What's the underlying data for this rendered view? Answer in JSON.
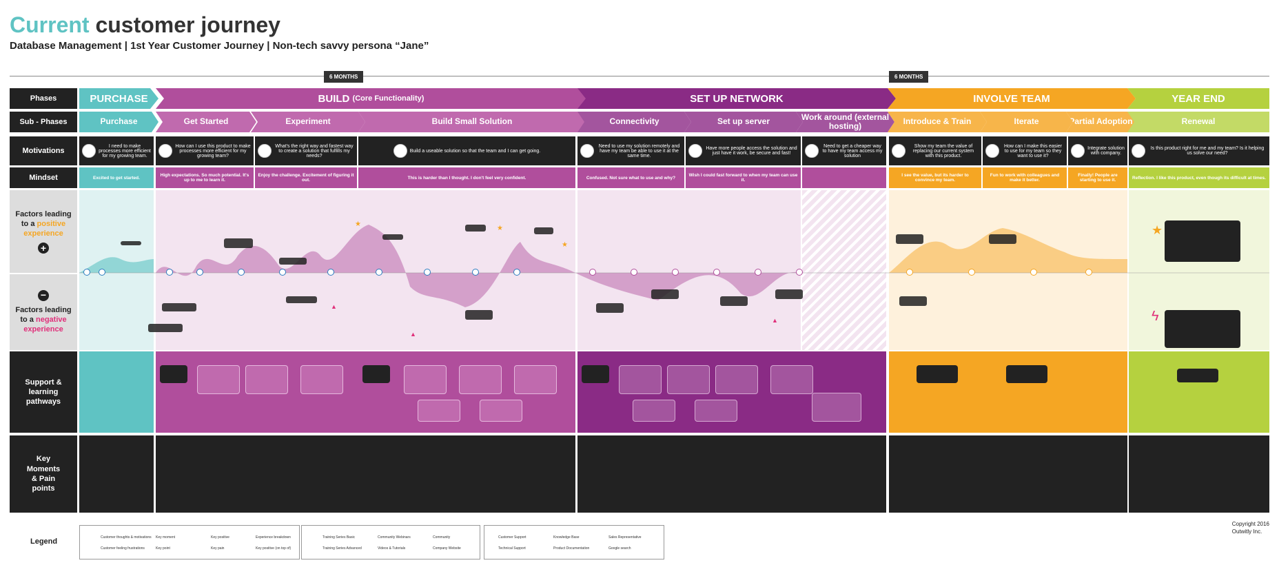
{
  "title": {
    "accent": "Current",
    "rest": " customer journey"
  },
  "subtitle": "Database Management  | 1st Year Customer Journey  | Non-tech savvy persona “Jane”",
  "timeline": {
    "mark1": "6 MONTHS",
    "mark2": "6 MONTHS"
  },
  "rows": {
    "phases": "Phases",
    "subphases": "Sub - Phases",
    "motivations": "Motivations",
    "mindset": "Mindset",
    "positive_1": "Factors leading",
    "positive_2": "to a",
    "positive_3": "positive",
    "positive_4": "experience",
    "negative_1": "Factors leading",
    "negative_2": "to a",
    "negative_3": "negative",
    "negative_4": "experience",
    "support": "Support & learning pathways",
    "moments": "Key Moments & Pain points"
  },
  "phases": [
    {
      "label": "PURCHASE",
      "color": "#5fc3c3"
    },
    {
      "label": "BUILD",
      "sub": "(Core Functionality)",
      "color": "#b04e9c"
    },
    {
      "label": "SET UP NETWORK",
      "color": "#8a2b85"
    },
    {
      "label": "INVOLVE TEAM",
      "color": "#f5a623"
    },
    {
      "label": "YEAR END",
      "color": "#b5d13f"
    }
  ],
  "subphases": [
    "Purchase",
    "Get Started",
    "Experiment",
    "Build Small Solution",
    "Connectivity",
    "Set up server",
    "Work around (external hosting)",
    "Introduce & Train",
    "Iterate",
    "Partial Adoption",
    "Renewal"
  ],
  "motivations": [
    "I need to make processes more efficient for my growing team.",
    "How can I use this product to make processes more efficient for my growing team?",
    "What's the right way and fastest way to create a solution that fulfills my needs?",
    "Build a useable solution so that the team and I can get going.",
    "Need to use my solution remotely and have my team be able to use it at the same time.",
    "Have more people access the solution and just have it work, be secure and fast!",
    "Need to get a cheaper way to have my team access my solution",
    "Show my team the value of replacing our current system with this product.",
    "How can I make this easier to use for my team so they want to use it?",
    "Integrate solution with company.",
    "Is this product right for me and my team? Is it helping us solve our need?"
  ],
  "mindset": [
    "Excited to get started.",
    "High expectations. So much potential. It's up to me to learn it.",
    "Enjoy the challenge. Excitement of figuring it out.",
    "This is harder than I thought. I don't feel very confident.",
    "Confused. Not sure what to use and why?",
    "Wish I could fast forward to when my team can use it.",
    "I see the value, but its harder to convince my team.",
    "Fun to work with colleagues and make it better.",
    "Finally! People are starting to use it.",
    "Reflection. I like this product, even though its difficult at times."
  ],
  "legend": {
    "label": "Legend",
    "group1": [
      "Customer thoughts & motivations",
      "Customer feeling frustrations",
      "Key moment",
      "Key point",
      "Experience breakdown",
      "Key pain",
      "Key positive",
      "Key positive (on top of)"
    ],
    "group2": [
      "Training Series Basic",
      "Training Series Advanced",
      "Community Webinars",
      "Videos & Tutorials",
      "Community",
      "Company Website"
    ],
    "group3": [
      "Customer Support",
      "Technical Support",
      "Knowledge Base",
      "Product Documentation",
      "Sales Representative",
      "Google search"
    ]
  },
  "copyright": {
    "line1": "Copyright 2016",
    "line2": "Outwitly Inc."
  }
}
